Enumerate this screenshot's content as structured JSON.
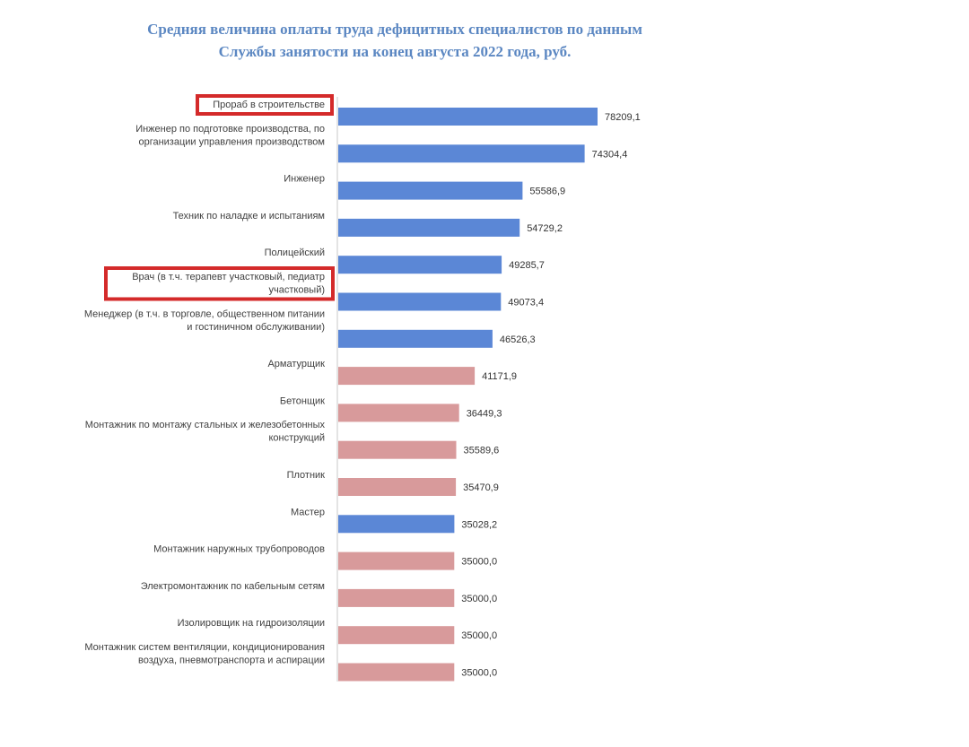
{
  "chart_data": {
    "type": "bar",
    "orientation": "horizontal",
    "title": [
      "Средняя величина оплаты труда дефицитных специалистов по данным",
      "Службы занятости на конец августа 2022 года, руб."
    ],
    "xlabel": "",
    "ylabel": "",
    "xlim": [
      0,
      80000
    ],
    "grid": false,
    "legend": "none",
    "colors": {
      "blue": "#5b87d6",
      "pink": "#d89a9b",
      "highlight_box": "#d42a2a",
      "title": "#5b87c2"
    },
    "categories": [
      [
        "Прораб в строительстве"
      ],
      [
        "Инженер по подготовке производства, по",
        "организации управления производством"
      ],
      [
        "Инженер"
      ],
      [
        "Техник по наладке и испытаниям"
      ],
      [
        "Полицейский"
      ],
      [
        "Врач (в т.ч. терапевт участковый, педиатр",
        "участковый)"
      ],
      [
        "Менеджер (в т.ч. в торговле, общественном питании",
        "и гостиничном обслуживании)"
      ],
      [
        "Арматурщик"
      ],
      [
        "Бетонщик"
      ],
      [
        "Монтажник по монтажу стальных и железобетонных",
        "конструкций"
      ],
      [
        "Плотник"
      ],
      [
        "Мастер"
      ],
      [
        "Монтажник наружных трубопроводов"
      ],
      [
        "Электромонтажник по кабельным сетям"
      ],
      [
        "Изолировщик на гидроизоляции"
      ],
      [
        "Монтажник систем вентиляции, кондиционирования",
        "воздуха, пневмотранспорта и аспирации"
      ]
    ],
    "values": [
      78209.1,
      74304.4,
      55586.9,
      54729.2,
      49285.7,
      49073.4,
      46526.3,
      41171.9,
      36449.3,
      35589.6,
      35470.9,
      35028.2,
      35000.0,
      35000.0,
      35000.0,
      35000.0
    ],
    "value_labels": [
      "78209,1",
      "74304,4",
      "55586,9",
      "54729,2",
      "49285,7",
      "49073,4",
      "46526,3",
      "41171,9",
      "36449,3",
      "35589,6",
      "35470,9",
      "35028,2",
      "35000,0",
      "35000,0",
      "35000,0",
      "35000,0"
    ],
    "bar_colors": [
      "blue",
      "blue",
      "blue",
      "blue",
      "blue",
      "blue",
      "blue",
      "pink",
      "pink",
      "pink",
      "pink",
      "blue",
      "pink",
      "pink",
      "pink",
      "pink"
    ],
    "highlighted": [
      true,
      false,
      false,
      false,
      false,
      true,
      false,
      false,
      false,
      false,
      false,
      false,
      false,
      false,
      false,
      false
    ]
  }
}
